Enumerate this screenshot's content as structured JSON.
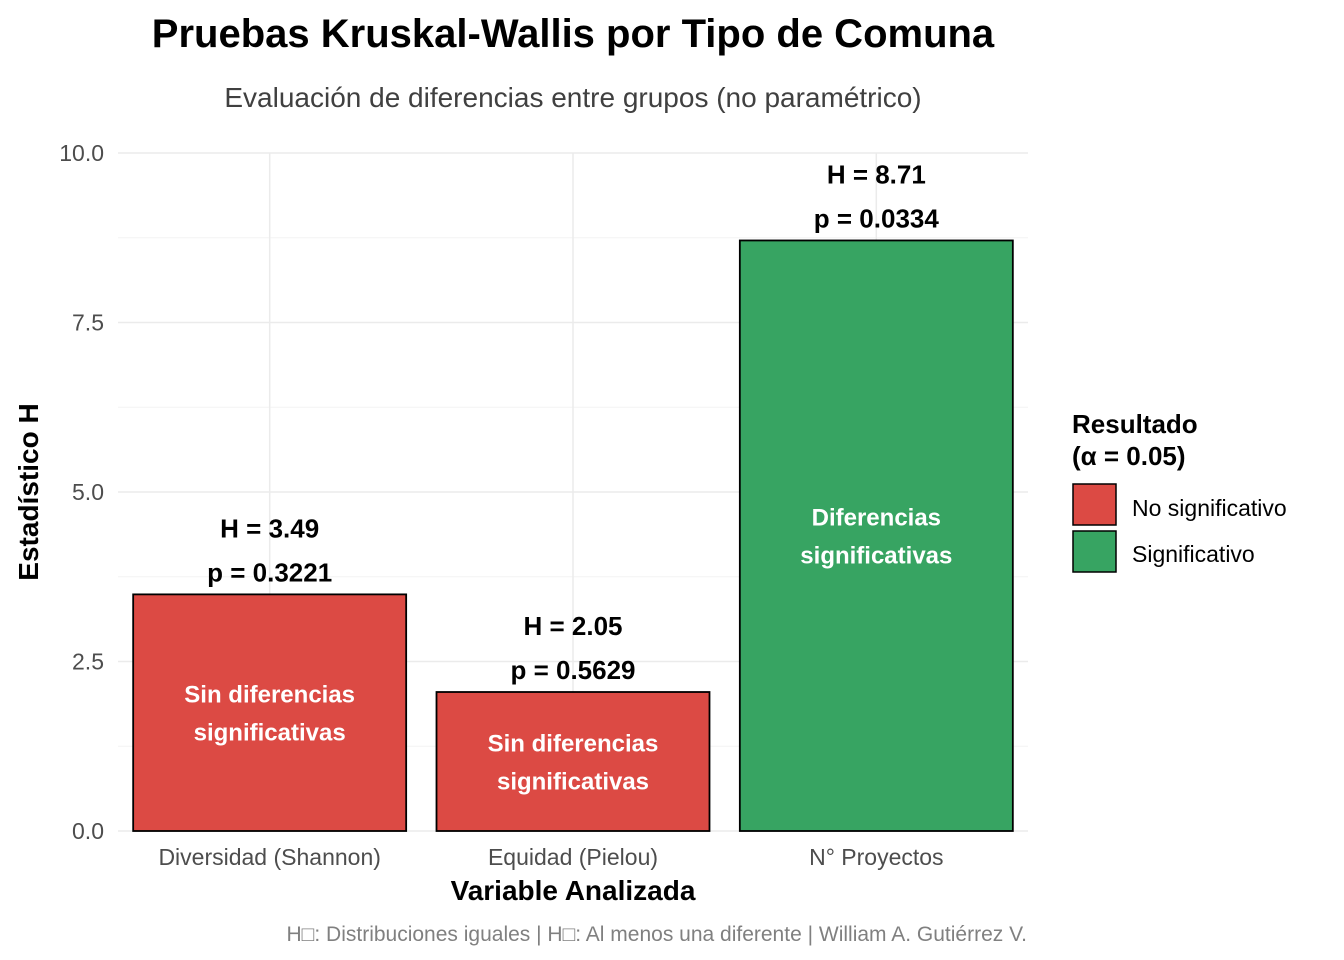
{
  "chart_data": {
    "type": "bar",
    "title": "Pruebas Kruskal-Wallis por Tipo de Comuna",
    "subtitle": "Evaluación de diferencias entre grupos (no paramétrico)",
    "xlabel": "Variable Analizada",
    "ylabel": "Estadístico H",
    "ylim": [
      0,
      10
    ],
    "y_ticks": [
      "0.0",
      "2.5",
      "5.0",
      "7.5",
      "10.0"
    ],
    "y_tick_values": [
      0,
      2.5,
      5,
      7.5,
      10
    ],
    "categories": [
      "Diversidad (Shannon)",
      "Equidad (Pielou)",
      "N° Proyectos"
    ],
    "values": [
      3.49,
      2.05,
      8.71
    ],
    "results": [
      "No significativo",
      "No significativo",
      "Significativo"
    ],
    "top_labels": [
      [
        "H = 3.49",
        "p = 0.3221"
      ],
      [
        "H = 2.05",
        "p = 0.5629"
      ],
      [
        "H = 8.71",
        "p = 0.0334"
      ]
    ],
    "inner_labels": [
      [
        "Sin diferencias",
        "significativas"
      ],
      [
        "Sin diferencias",
        "significativas"
      ],
      [
        "Diferencias",
        "significativas"
      ]
    ],
    "legend": {
      "title_line1": "Resultado",
      "title_line2": "(α = 0.05)",
      "position": "right",
      "items": [
        {
          "label": "No significativo",
          "color": "#dc4a44"
        },
        {
          "label": "Significativo",
          "color": "#37a462"
        }
      ]
    },
    "caption": "H□: Distribuciones iguales | H□: Al menos una diferente | William A. Gutiérrez V.",
    "grid": true
  }
}
